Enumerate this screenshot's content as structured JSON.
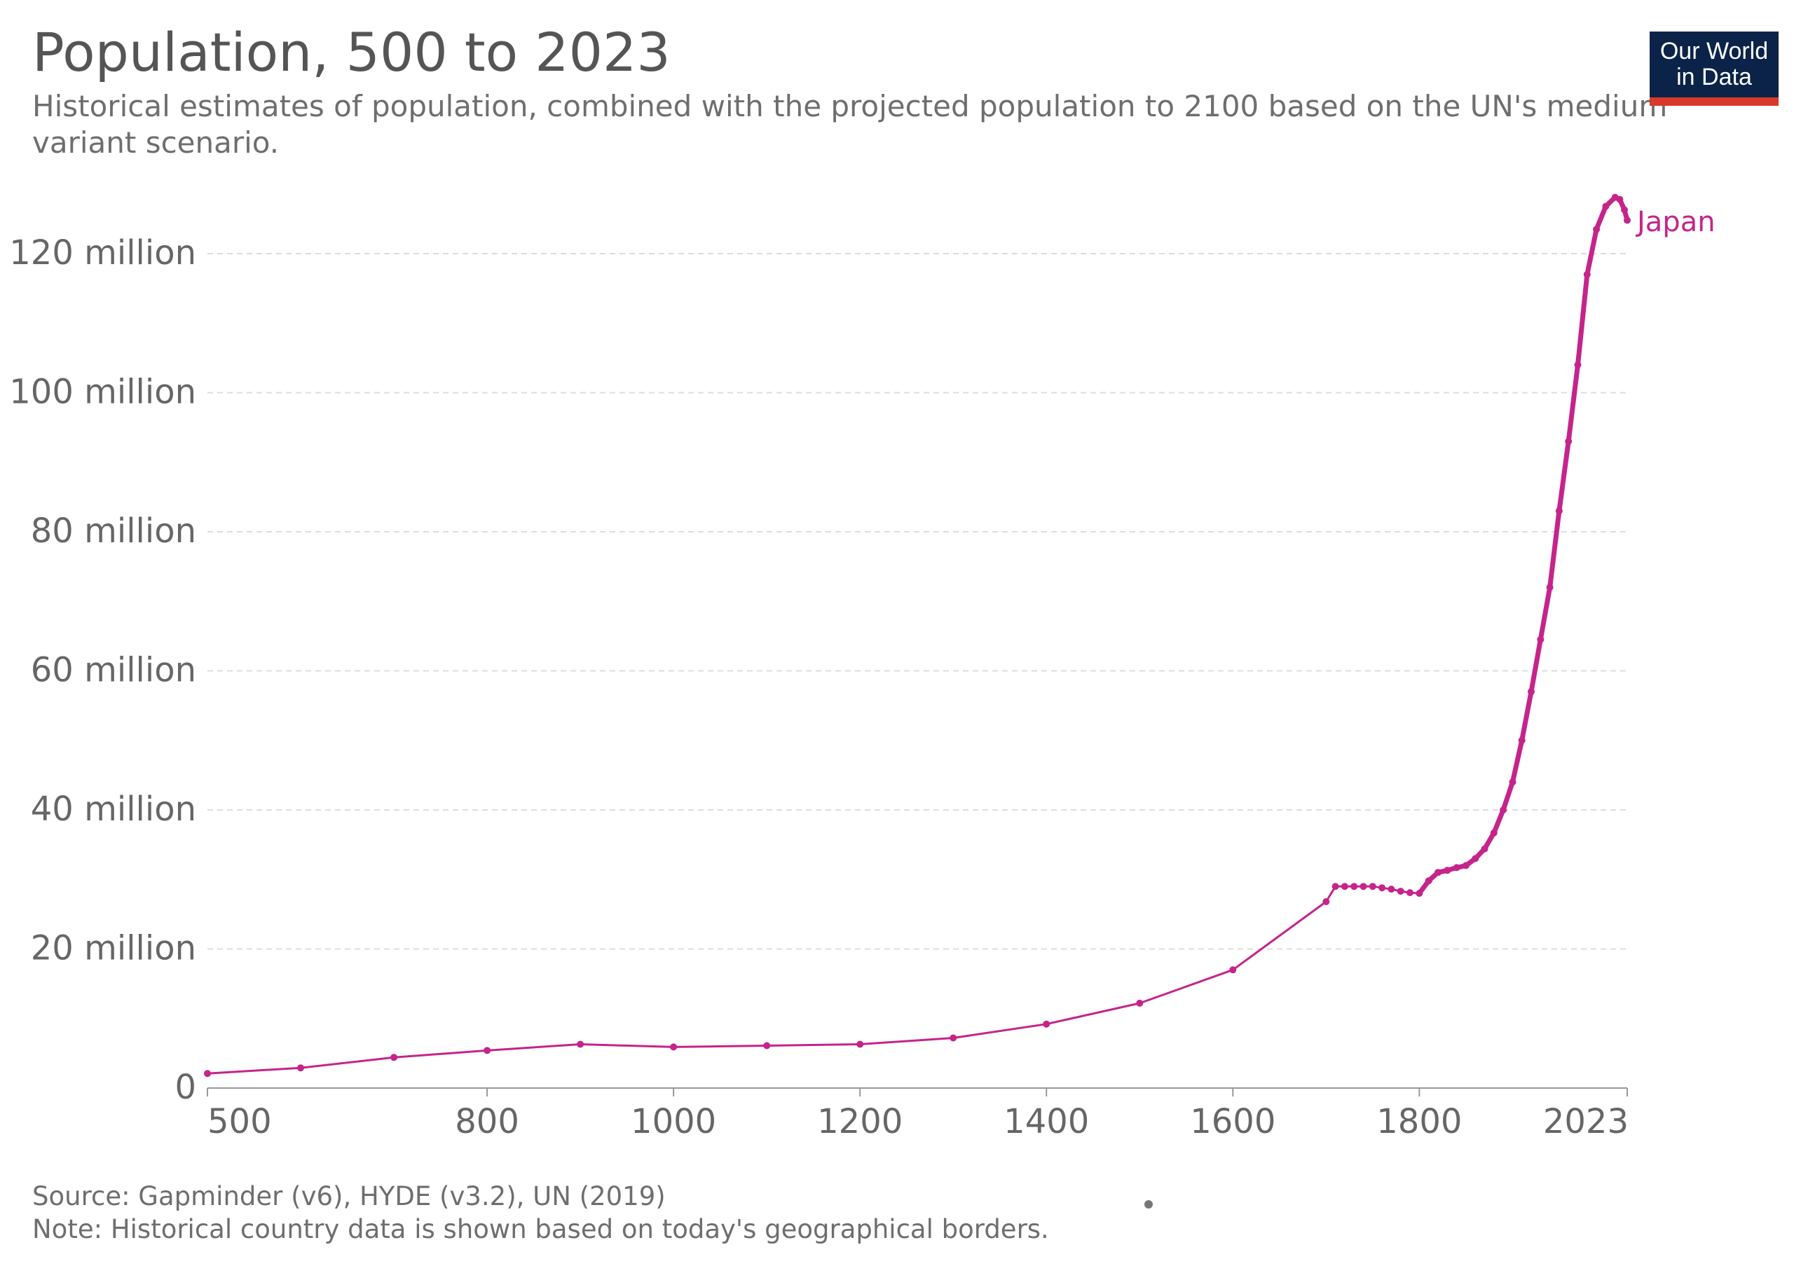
{
  "header": {
    "title": "Population, 500 to 2023",
    "subtitle": "Historical estimates of population, combined with the projected population to 2100 based on the UN's medium variant scenario."
  },
  "logo": {
    "line1": "Our World",
    "line2": "in Data",
    "bg_color": "#0b2348",
    "accent_color": "#d73a2a"
  },
  "footer": {
    "source": "Source: Gapminder (v6), HYDE (v3.2), UN (2019)",
    "note": "Note: Historical country data is shown based on today's geographical borders."
  },
  "chart_data": {
    "type": "line",
    "title": "Population, 500 to 2023",
    "xlabel": "",
    "ylabel": "",
    "xlim": [
      500,
      2023
    ],
    "ylim": [
      0,
      120000000
    ],
    "grid": true,
    "x_ticks": [
      {
        "value": 500,
        "label": "500"
      },
      {
        "value": 800,
        "label": "800"
      },
      {
        "value": 1000,
        "label": "1000"
      },
      {
        "value": 1200,
        "label": "1200"
      },
      {
        "value": 1400,
        "label": "1400"
      },
      {
        "value": 1600,
        "label": "1600"
      },
      {
        "value": 1800,
        "label": "1800"
      },
      {
        "value": 2023,
        "label": "2023"
      }
    ],
    "y_ticks": [
      {
        "value": 0,
        "label": "0"
      },
      {
        "value": 20000000,
        "label": "20 million"
      },
      {
        "value": 40000000,
        "label": "40 million"
      },
      {
        "value": 60000000,
        "label": "60 million"
      },
      {
        "value": 80000000,
        "label": "80 million"
      },
      {
        "value": 100000000,
        "label": "100 million"
      },
      {
        "value": 120000000,
        "label": "120 million"
      }
    ],
    "series": [
      {
        "name": "Japan",
        "color": "#c5248b",
        "points": [
          [
            500,
            2100000
          ],
          [
            600,
            2900000
          ],
          [
            700,
            4400000
          ],
          [
            800,
            5400000
          ],
          [
            900,
            6300000
          ],
          [
            1000,
            5900000
          ],
          [
            1100,
            6100000
          ],
          [
            1200,
            6300000
          ],
          [
            1300,
            7200000
          ],
          [
            1400,
            9200000
          ],
          [
            1500,
            12200000
          ],
          [
            1600,
            17000000
          ],
          [
            1700,
            26800000
          ],
          [
            1710,
            29000000
          ],
          [
            1720,
            29000000
          ],
          [
            1730,
            29000000
          ],
          [
            1740,
            29000000
          ],
          [
            1750,
            29000000
          ],
          [
            1760,
            28800000
          ],
          [
            1770,
            28600000
          ],
          [
            1780,
            28300000
          ],
          [
            1790,
            28100000
          ],
          [
            1800,
            28000000
          ],
          [
            1810,
            29800000
          ],
          [
            1820,
            31000000
          ],
          [
            1830,
            31300000
          ],
          [
            1840,
            31700000
          ],
          [
            1850,
            32000000
          ],
          [
            1860,
            33000000
          ],
          [
            1870,
            34400000
          ],
          [
            1880,
            36700000
          ],
          [
            1890,
            40000000
          ],
          [
            1900,
            44000000
          ],
          [
            1910,
            50000000
          ],
          [
            1920,
            57000000
          ],
          [
            1930,
            64500000
          ],
          [
            1940,
            72000000
          ],
          [
            1950,
            83000000
          ],
          [
            1960,
            93000000
          ],
          [
            1970,
            104000000
          ],
          [
            1980,
            117000000
          ],
          [
            1990,
            123500000
          ],
          [
            2000,
            126800000
          ],
          [
            2010,
            128100000
          ],
          [
            2015,
            127800000
          ],
          [
            2020,
            126300000
          ],
          [
            2023,
            124800000
          ]
        ]
      }
    ]
  }
}
